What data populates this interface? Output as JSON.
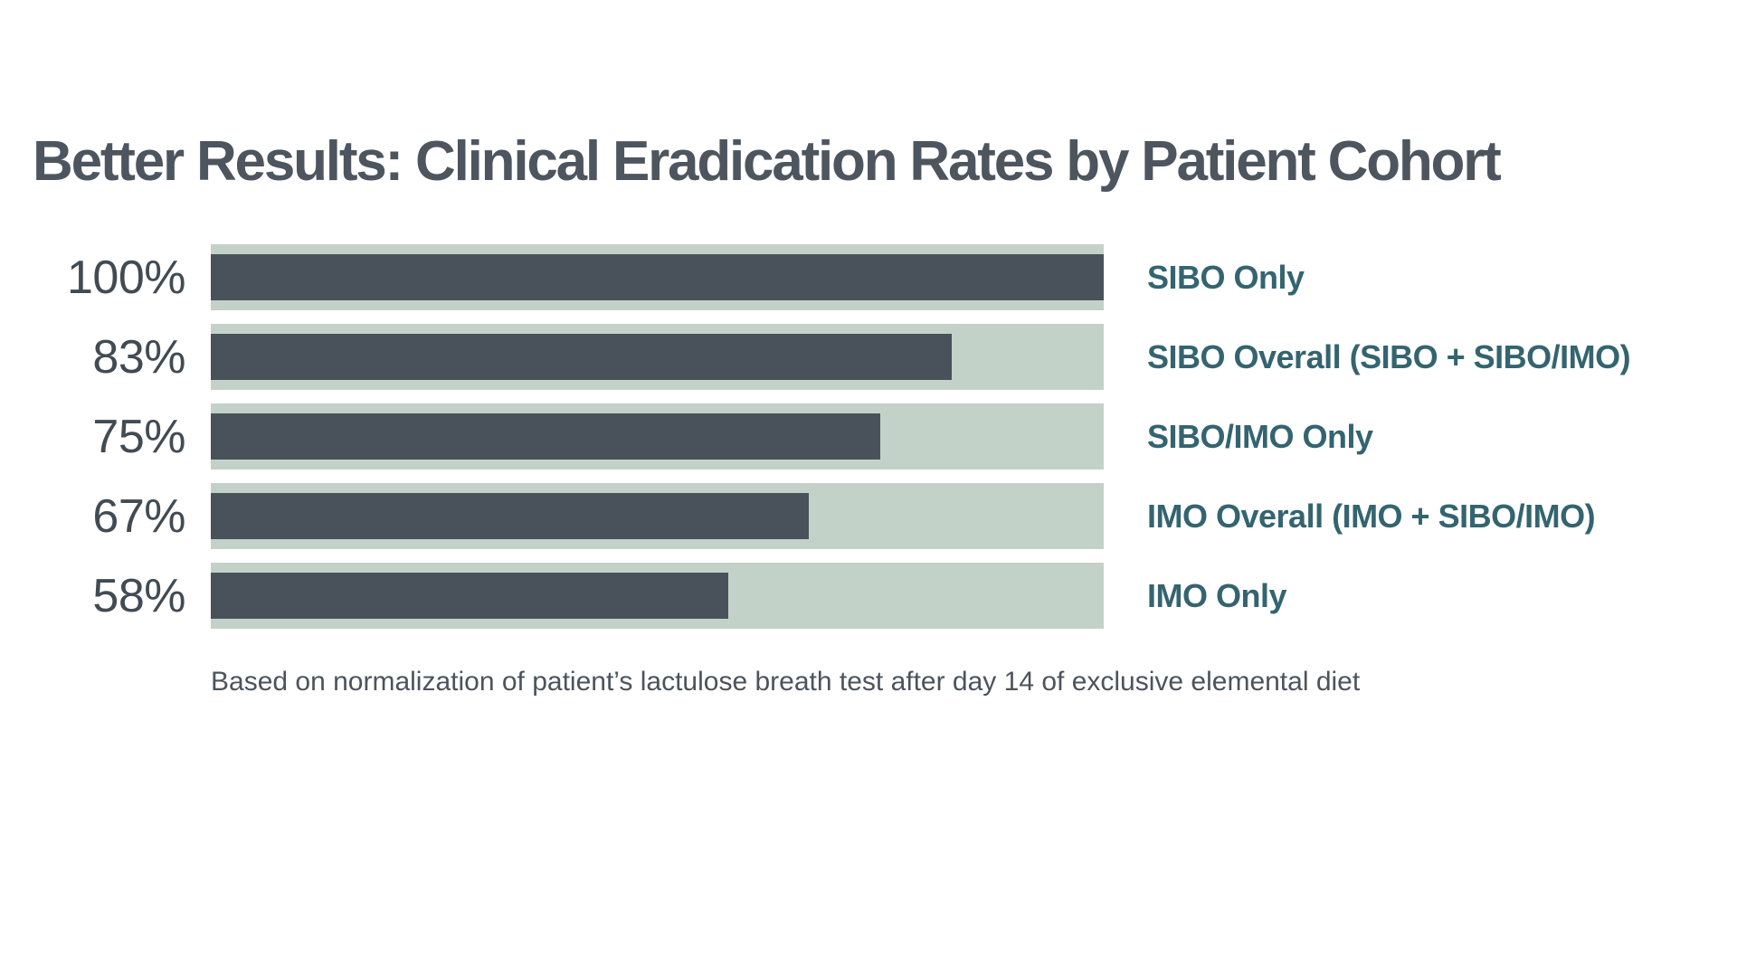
{
  "page": {
    "background": "#ffffff"
  },
  "header": {
    "title": "Better Results: Clinical Eradication Rates by Patient Cohort"
  },
  "chart_data": {
    "type": "bar",
    "orientation": "horizontal",
    "title": "Better Results: Clinical Eradication Rates by Patient Cohort",
    "categories": [
      "SIBO Only",
      "SIBO Overall (SIBO + SIBO/IMO)",
      "SIBO/IMO Only",
      "IMO Overall (IMO + SIBO/IMO)",
      "IMO Only"
    ],
    "values": [
      100,
      83,
      75,
      67,
      58
    ],
    "value_labels": [
      "100%",
      "83%",
      "75%",
      "67%",
      "58%"
    ],
    "xlim": [
      0,
      100
    ],
    "grid": false,
    "legend": false,
    "footnote": "Based on normalization of patient’s lactulose breath test after day 14 of exclusive elemental diet",
    "colors": {
      "bar_fill": "#49525a",
      "bar_track": "#c3d2c8",
      "title_text": "#4d565e",
      "category_label": "#34646f",
      "value_label": "#414b54",
      "footnote_text": "#4b545c"
    }
  }
}
